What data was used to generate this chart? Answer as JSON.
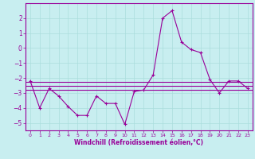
{
  "xlabel": "Windchill (Refroidissement éolien,°C)",
  "background_color": "#c8eef0",
  "grid_color": "#aadddd",
  "line_color": "#990099",
  "xlim": [
    -0.5,
    23.5
  ],
  "ylim": [
    -5.5,
    3.0
  ],
  "yticks": [
    -5,
    -4,
    -3,
    -2,
    -1,
    0,
    1,
    2
  ],
  "xticks": [
    0,
    1,
    2,
    3,
    4,
    5,
    6,
    7,
    8,
    9,
    10,
    11,
    12,
    13,
    14,
    15,
    16,
    17,
    18,
    19,
    20,
    21,
    22,
    23
  ],
  "main_x": [
    0,
    1,
    2,
    3,
    4,
    5,
    6,
    7,
    8,
    9,
    10,
    11,
    12,
    13,
    14,
    15,
    16,
    17,
    18,
    19,
    20,
    21,
    22,
    23
  ],
  "main_y": [
    -2.2,
    -4.0,
    -2.7,
    -3.2,
    -3.9,
    -4.5,
    -4.5,
    -3.2,
    -3.7,
    -3.7,
    -5.1,
    -2.9,
    -2.8,
    -1.8,
    2.0,
    2.5,
    0.4,
    -0.1,
    -0.3,
    -2.1,
    -3.0,
    -2.2,
    -2.2,
    -2.7
  ],
  "flat_line1_y": -2.25,
  "flat_line2_y": -2.55,
  "flat_line3_y": -2.8
}
